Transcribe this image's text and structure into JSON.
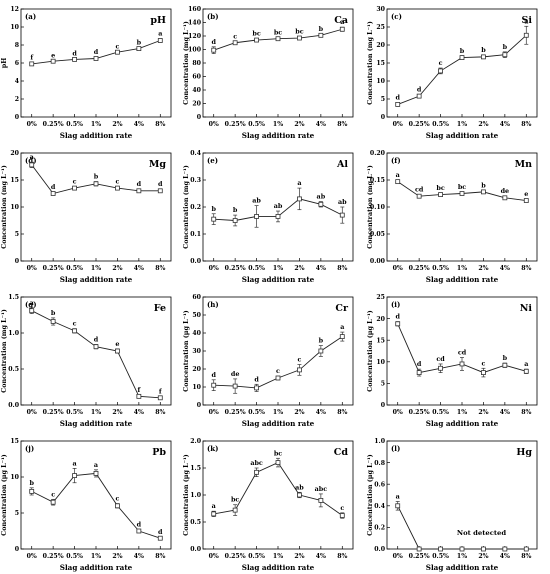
{
  "x_label": "Slag addition rate",
  "categories": [
    "0%",
    "0.25%",
    "0.5%",
    "1%",
    "2%",
    "4%",
    "8%"
  ],
  "chart_data": [
    {
      "type": "line",
      "panel_label": "(a)",
      "element": "pH",
      "ylabel": "pH",
      "ylim": [
        0,
        12
      ],
      "yticks": [
        0,
        2,
        4,
        6,
        8,
        10,
        12
      ],
      "values": [
        5.9,
        6.2,
        6.4,
        6.5,
        7.2,
        7.6,
        8.5
      ],
      "errors": [
        0.15,
        0.1,
        0.1,
        0.15,
        0.1,
        0.15,
        0.2
      ],
      "letters": [
        "f",
        "e",
        "d",
        "d",
        "c",
        "b",
        "a"
      ]
    },
    {
      "type": "line",
      "panel_label": "(b)",
      "element": "Ca",
      "ylabel": "Concentration (mg L⁻¹)",
      "ylim": [
        0,
        160
      ],
      "yticks": [
        0,
        20,
        40,
        60,
        80,
        100,
        120,
        140,
        160
      ],
      "values": [
        99,
        110,
        114,
        116,
        117,
        121,
        130
      ],
      "errors": [
        5,
        2,
        2,
        2,
        2,
        2,
        3
      ],
      "letters": [
        "d",
        "c",
        "bc",
        "bc",
        "bc",
        "b",
        "a"
      ]
    },
    {
      "type": "line",
      "panel_label": "(c)",
      "element": "Si",
      "ylabel": "Concentration (mg L⁻¹)",
      "ylim": [
        0,
        30
      ],
      "yticks": [
        0,
        5,
        10,
        15,
        20,
        25,
        30
      ],
      "values": [
        3.5,
        5.8,
        12.8,
        16.5,
        16.7,
        17.3,
        22.7
      ],
      "errors": [
        0.5,
        0.5,
        0.8,
        0.5,
        0.5,
        0.8,
        2.5
      ],
      "letters": [
        "d",
        "d",
        "c",
        "b",
        "b",
        "b",
        "a"
      ]
    },
    {
      "type": "line",
      "panel_label": "(d)",
      "element": "Mg",
      "ylabel": "Concentration (mg L⁻¹)",
      "ylim": [
        0,
        20
      ],
      "yticks": [
        0,
        5,
        10,
        15,
        20
      ],
      "values": [
        17.8,
        12.5,
        13.5,
        14.3,
        13.5,
        13.0,
        13.0
      ],
      "errors": [
        0.5,
        0.3,
        0.3,
        0.4,
        0.3,
        0.3,
        0.3
      ],
      "letters": [
        "a",
        "d",
        "c",
        "b",
        "c",
        "d",
        "d"
      ]
    },
    {
      "type": "line",
      "panel_label": "(e)",
      "element": "Al",
      "ylabel": "Concentration (mg L⁻¹)",
      "ylim": [
        0,
        0.4
      ],
      "yticks": [
        0.0,
        0.1,
        0.2,
        0.3,
        0.4
      ],
      "values": [
        0.155,
        0.15,
        0.165,
        0.165,
        0.23,
        0.21,
        0.17
      ],
      "errors": [
        0.02,
        0.02,
        0.04,
        0.02,
        0.04,
        0.01,
        0.03
      ],
      "letters": [
        "b",
        "b",
        "ab",
        "ab",
        "a",
        "ab",
        "ab"
      ]
    },
    {
      "type": "line",
      "panel_label": "(f)",
      "element": "Mn",
      "ylabel": "Concentration (mg L⁻¹)",
      "ylim": [
        0,
        0.2
      ],
      "yticks": [
        0.0,
        0.05,
        0.1,
        0.15,
        0.2
      ],
      "values": [
        0.147,
        0.12,
        0.123,
        0.125,
        0.128,
        0.117,
        0.112
      ],
      "errors": [
        0.003,
        0.003,
        0.003,
        0.003,
        0.003,
        0.003,
        0.003
      ],
      "letters": [
        "a",
        "cd",
        "bc",
        "bc",
        "b",
        "de",
        "e"
      ]
    },
    {
      "type": "line",
      "panel_label": "(g)",
      "element": "Fe",
      "ylabel": "Concentration (mg L⁻¹)",
      "ylim": [
        0,
        1.5
      ],
      "yticks": [
        0.0,
        0.5,
        1.0,
        1.5
      ],
      "values": [
        1.31,
        1.16,
        1.03,
        0.81,
        0.75,
        0.12,
        0.1
      ],
      "errors": [
        0.04,
        0.05,
        0.03,
        0.03,
        0.03,
        0.02,
        0.02
      ],
      "letters": [
        "a",
        "b",
        "c",
        "d",
        "e",
        "f",
        "f"
      ]
    },
    {
      "type": "line",
      "panel_label": "(h)",
      "element": "Cr",
      "ylabel": "Concentration (μg L⁻¹)",
      "ylim": [
        0,
        60
      ],
      "yticks": [
        0,
        10,
        20,
        30,
        40,
        50,
        60
      ],
      "values": [
        11,
        10.5,
        9.5,
        15,
        19.5,
        30,
        38
      ],
      "errors": [
        3,
        4,
        2,
        1,
        3,
        3,
        2.5
      ],
      "letters": [
        "d",
        "de",
        "d",
        "c",
        "c",
        "b",
        "a"
      ]
    },
    {
      "type": "line",
      "panel_label": "(i)",
      "element": "Ni",
      "ylabel": "Concentration (μg L⁻¹)",
      "ylim": [
        0,
        25
      ],
      "yticks": [
        0,
        5,
        10,
        15,
        20,
        25
      ],
      "values": [
        18.8,
        7.5,
        8.5,
        9.5,
        7.5,
        9.2,
        7.8
      ],
      "errors": [
        0.5,
        0.8,
        1.0,
        1.5,
        1.0,
        0.5,
        0.5
      ],
      "letters": [
        "d",
        "d",
        "cd",
        "cd",
        "c",
        "b",
        "a"
      ]
    },
    {
      "type": "line",
      "panel_label": "(j)",
      "element": "Pb",
      "ylabel": "Concentration (μg L⁻¹)",
      "ylim": [
        0,
        15
      ],
      "yticks": [
        0,
        5,
        10,
        15
      ],
      "values": [
        8.0,
        6.5,
        10.2,
        10.5,
        6.0,
        2.5,
        1.5
      ],
      "errors": [
        0.5,
        0.4,
        1.0,
        0.5,
        0.3,
        0.2,
        0.2
      ],
      "letters": [
        "b",
        "c",
        "a",
        "a",
        "c",
        "d",
        "d"
      ]
    },
    {
      "type": "line",
      "panel_label": "(k)",
      "element": "Cd",
      "ylabel": "Concentration (μg L⁻¹)",
      "ylim": [
        0,
        2.0
      ],
      "yticks": [
        0.0,
        0.5,
        1.0,
        1.5,
        2.0
      ],
      "values": [
        0.65,
        0.72,
        1.42,
        1.6,
        1.0,
        0.9,
        0.62
      ],
      "errors": [
        0.05,
        0.1,
        0.08,
        0.08,
        0.05,
        0.12,
        0.05
      ],
      "letters": [
        "a",
        "bc",
        "abc",
        "bc",
        "ab",
        "abc",
        "c"
      ]
    },
    {
      "type": "line",
      "panel_label": "(l)",
      "element": "Hg",
      "ylabel": "Concentration (μg L⁻¹)",
      "ylim": [
        0,
        1.0
      ],
      "yticks": [
        0.0,
        0.2,
        0.4,
        0.6,
        0.8,
        1.0
      ],
      "values": [
        0.4,
        0,
        0,
        0,
        0,
        0,
        0
      ],
      "errors": [
        0.04,
        0,
        0,
        0,
        0,
        0,
        0
      ],
      "letters": [
        "a",
        "",
        "",
        "",
        "",
        "",
        ""
      ],
      "note": "Not detected"
    }
  ]
}
